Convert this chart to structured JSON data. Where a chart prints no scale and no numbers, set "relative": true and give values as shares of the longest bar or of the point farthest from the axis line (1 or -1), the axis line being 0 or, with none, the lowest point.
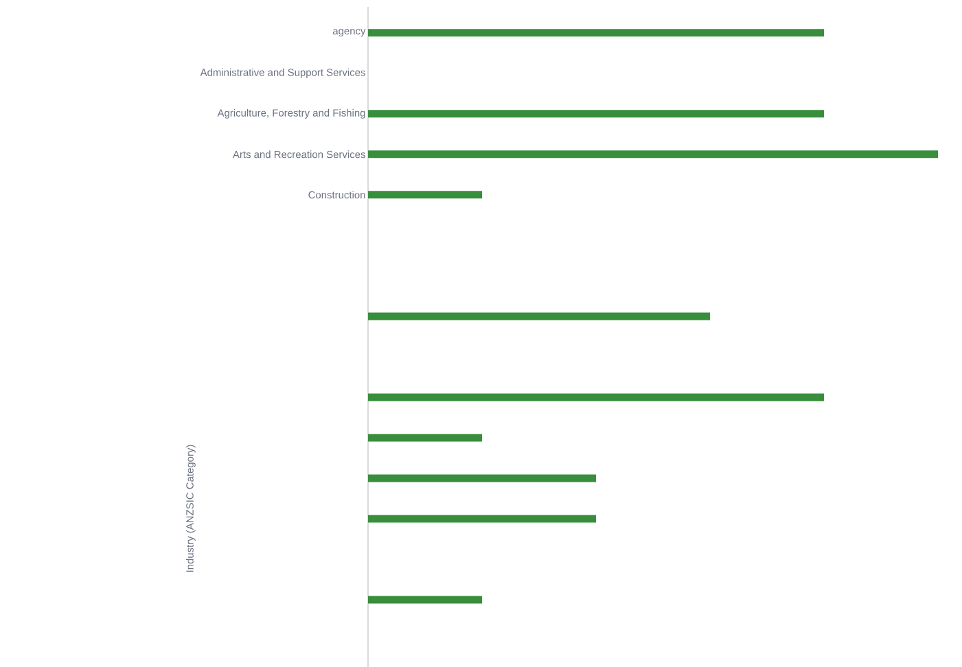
{
  "chart_data": {
    "type": "bar",
    "orientation": "horizontal",
    "relative": true,
    "ylabel": "Industry (ANZSIC Category)",
    "categories": [
      "agency",
      "Administrative and Support Services",
      "Agriculture, Forestry and Fishing",
      "Arts and Recreation Services",
      "Construction",
      null,
      null,
      null,
      null,
      null,
      null,
      null,
      null,
      null,
      null
    ],
    "values": [
      0.8,
      null,
      0.8,
      1,
      0.2,
      null,
      null,
      0.6,
      null,
      0.8,
      0.2,
      0.4,
      0.4,
      null,
      0.2
    ],
    "color": "#388e3c",
    "grid": false
  }
}
